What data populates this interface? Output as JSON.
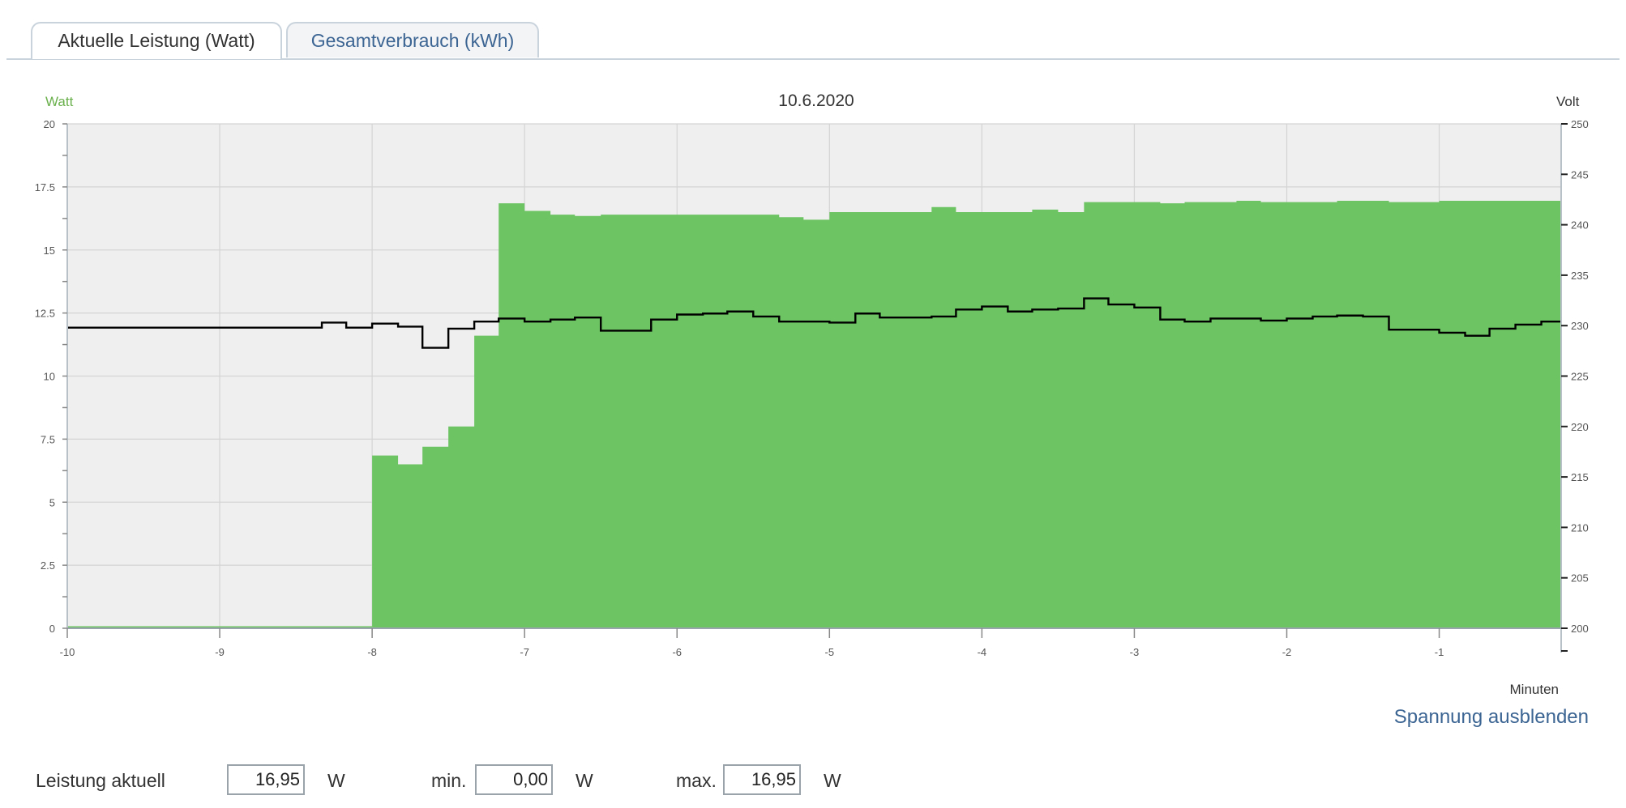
{
  "tabs": [
    {
      "label": "Aktuelle Leistung (Watt)",
      "active": true
    },
    {
      "label": "Gesamtverbrauch (kWh)",
      "active": false
    }
  ],
  "chart_data": {
    "type": "area",
    "title": "10.6.2020",
    "xlabel": "Minuten",
    "ylabel_left": "Watt",
    "ylabel_right": "Volt",
    "xlim": [
      -10,
      -0.2
    ],
    "ylim_left": [
      0,
      20
    ],
    "ylim_right": [
      200,
      250
    ],
    "x_ticks": [
      "-10",
      "-9",
      "-8",
      "-7",
      "-6",
      "-5",
      "-4",
      "-3",
      "-2",
      "-1"
    ],
    "y_ticks_left": [
      "0",
      "2.5",
      "5",
      "7.5",
      "10",
      "12.5",
      "15",
      "17.5",
      "20"
    ],
    "y_ticks_right": [
      "200",
      "205",
      "210",
      "215",
      "220",
      "225",
      "230",
      "235",
      "240",
      "245",
      "250"
    ],
    "grid": true,
    "colors": {
      "power": "#6cc462",
      "voltage": "#000000",
      "plot_bg": "#efefef",
      "left_axis_label": "#6ab04c"
    },
    "series": [
      {
        "axis": "left",
        "step": true,
        "x": [
          -10,
          -8.0,
          -7.83,
          -7.67,
          -7.5,
          -7.33,
          -7.17,
          -7.0,
          -6.83,
          -6.67,
          -6.5,
          -5.33,
          -5.17,
          -5.0,
          -4.5,
          -4.33,
          -4.17,
          -3.67,
          -3.5,
          -3.33,
          -3.0,
          -2.83,
          -2.67,
          -2.33,
          -2.17,
          -1.67,
          -1.33,
          -1.0,
          -0.2
        ],
        "values": [
          0,
          6.85,
          6.5,
          7.2,
          8.0,
          11.6,
          16.85,
          16.55,
          16.4,
          16.35,
          16.4,
          16.3,
          16.2,
          16.5,
          16.5,
          16.7,
          16.5,
          16.6,
          16.5,
          16.9,
          16.9,
          16.85,
          16.9,
          16.95,
          16.9,
          16.95,
          16.9,
          16.95,
          16.95
        ]
      },
      {
        "axis": "right",
        "step": true,
        "x": [
          -10,
          -8.33,
          -8.17,
          -8.0,
          -7.83,
          -7.67,
          -7.5,
          -7.33,
          -7.17,
          -7.0,
          -6.83,
          -6.67,
          -6.5,
          -6.17,
          -6.0,
          -5.83,
          -5.67,
          -5.5,
          -5.33,
          -5.0,
          -4.83,
          -4.67,
          -4.33,
          -4.17,
          -4.0,
          -3.83,
          -3.67,
          -3.5,
          -3.33,
          -3.17,
          -3.0,
          -2.83,
          -2.67,
          -2.5,
          -2.33,
          -2.17,
          -2.0,
          -1.83,
          -1.67,
          -1.5,
          -1.33,
          -1.0,
          -0.83,
          -0.67,
          -0.5,
          -0.33,
          -0.2
        ],
        "values": [
          229.8,
          230.3,
          229.8,
          230.2,
          229.9,
          227.8,
          229.7,
          230.4,
          230.7,
          230.4,
          230.6,
          230.8,
          229.5,
          230.6,
          231.1,
          231.2,
          231.4,
          230.9,
          230.4,
          230.3,
          231.2,
          230.8,
          230.9,
          231.6,
          231.9,
          231.4,
          231.6,
          231.7,
          232.7,
          232.1,
          231.8,
          230.6,
          230.4,
          230.7,
          230.7,
          230.5,
          230.7,
          230.9,
          231.0,
          230.9,
          229.6,
          229.3,
          229.0,
          229.7,
          230.1,
          230.4,
          230.4
        ]
      }
    ]
  },
  "toggle_link": "Spannung ausblenden",
  "stats": {
    "current_label": "Leistung aktuell",
    "current_value": "16,95",
    "min_label": "min.",
    "min_value": "0,00",
    "max_label": "max.",
    "max_value": "16,95",
    "unit": "W"
  }
}
